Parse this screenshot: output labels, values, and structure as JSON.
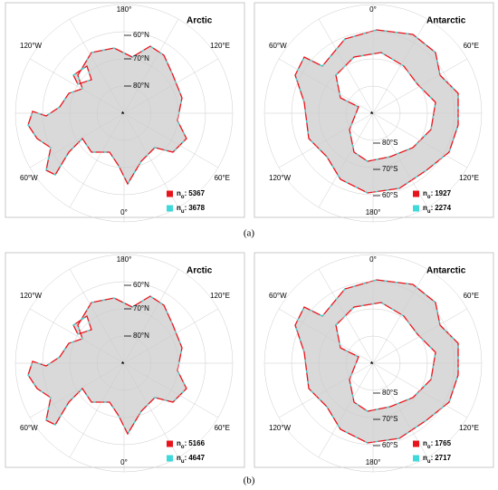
{
  "panels": [
    {
      "caption": "(a)",
      "maps": [
        {
          "title": "Arctic",
          "longitudes": [
            "180°",
            "120°W",
            "120°E",
            "60°W",
            "60°E",
            "0°"
          ],
          "latitudes": [
            "60°N",
            "70°N",
            "80°N"
          ],
          "legend": [
            {
              "var": "n",
              "sub": "o",
              "sep": ":",
              "count": 5367
            },
            {
              "var": "n",
              "sub": "u",
              "sep": ":",
              "count": 3678
            }
          ]
        },
        {
          "title": "Antarctic",
          "longitudes": [
            "0°",
            "60°W",
            "60°E",
            "120°W",
            "120°E",
            "180°"
          ],
          "latitudes": [
            "80°S",
            "70°S",
            "60°S"
          ],
          "legend": [
            {
              "var": "n",
              "sub": "o",
              "sep": ":",
              "count": 1927
            },
            {
              "var": "n",
              "sub": "u",
              "sep": ":",
              "count": 2274
            }
          ]
        }
      ]
    },
    {
      "caption": "(b)",
      "maps": [
        {
          "title": "Arctic",
          "longitudes": [
            "180°",
            "120°W",
            "120°E",
            "60°W",
            "60°E",
            "0°"
          ],
          "latitudes": [
            "60°N",
            "70°N",
            "80°N"
          ],
          "legend": [
            {
              "var": "n",
              "sub": "o",
              "sep": ":",
              "count": 5166
            },
            {
              "var": "n",
              "sub": "u",
              "sep": ":",
              "count": 4647
            }
          ]
        },
        {
          "title": "Antarctic",
          "longitudes": [
            "0°",
            "60°W",
            "60°E",
            "120°W",
            "120°E",
            "180°"
          ],
          "latitudes": [
            "80°S",
            "70°S",
            "60°S"
          ],
          "legend": [
            {
              "var": "n",
              "sub": "o",
              "sep": ":",
              "count": 1765
            },
            {
              "var": "n",
              "sub": "u",
              "sep": ":",
              "count": 2717
            }
          ]
        }
      ]
    }
  ]
}
